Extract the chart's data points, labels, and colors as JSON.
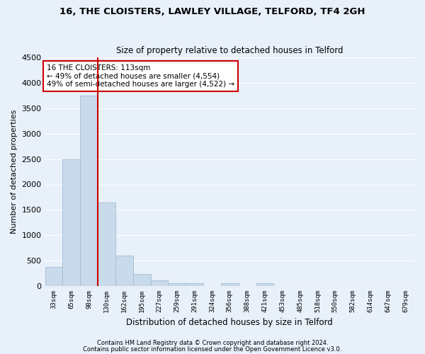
{
  "title_line1": "16, THE CLOISTERS, LAWLEY VILLAGE, TELFORD, TF4 2GH",
  "title_line2": "Size of property relative to detached houses in Telford",
  "xlabel": "Distribution of detached houses by size in Telford",
  "ylabel": "Number of detached properties",
  "bar_color": "#c9daea",
  "bar_edge_color": "#a0bcd4",
  "background_color": "#e8f0fa",
  "grid_color": "#ffffff",
  "categories": [
    "33sqm",
    "65sqm",
    "98sqm",
    "130sqm",
    "162sqm",
    "195sqm",
    "227sqm",
    "259sqm",
    "291sqm",
    "324sqm",
    "356sqm",
    "388sqm",
    "421sqm",
    "453sqm",
    "485sqm",
    "518sqm",
    "550sqm",
    "582sqm",
    "614sqm",
    "647sqm",
    "679sqm"
  ],
  "values": [
    380,
    2500,
    3750,
    1640,
    600,
    240,
    110,
    60,
    55,
    0,
    50,
    0,
    60,
    0,
    0,
    0,
    0,
    0,
    0,
    0,
    0
  ],
  "vline_color": "#cc0000",
  "annotation_text": "16 THE CLOISTERS: 113sqm\n← 49% of detached houses are smaller (4,554)\n49% of semi-detached houses are larger (4,522) →",
  "annotation_box_color": "#ffffff",
  "annotation_box_edge": "#cc0000",
  "ylim": [
    0,
    4500
  ],
  "yticks": [
    0,
    500,
    1000,
    1500,
    2000,
    2500,
    3000,
    3500,
    4000,
    4500
  ],
  "footnote1": "Contains HM Land Registry data © Crown copyright and database right 2024.",
  "footnote2": "Contains public sector information licensed under the Open Government Licence v3.0."
}
